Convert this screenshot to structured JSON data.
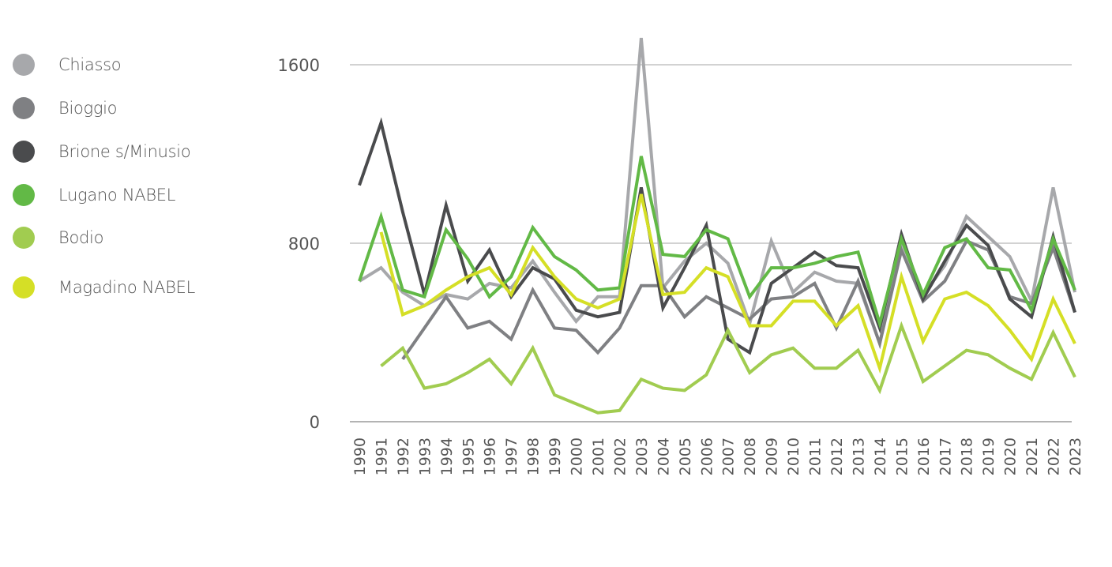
{
  "legend": [
    {
      "name": "Chiasso",
      "color": "#a7a8ab"
    },
    {
      "name": "Bioggio",
      "color": "#7f8083"
    },
    {
      "name": "Brione s/Minusio",
      "color": "#4a4b4d"
    },
    {
      "name": "Lugano NABEL",
      "color": "#62b946"
    },
    {
      "name": "Bodio",
      "color": "#a1cc50"
    },
    {
      "name": "Magadino NABEL",
      "color": "#d5df26"
    }
  ],
  "chart_data": {
    "type": "line",
    "title": "",
    "xlabel": "",
    "ylabel": "",
    "ylim": [
      0,
      1600
    ],
    "yticks": [
      0,
      800,
      1600
    ],
    "grid": true,
    "legend_position": "left",
    "categories": [
      "1990",
      "1991",
      "1992",
      "1993",
      "1994",
      "1995",
      "1996",
      "1997",
      "1998",
      "1999",
      "2000",
      "2001",
      "2002",
      "2003",
      "2004",
      "2005",
      "2006",
      "2007",
      "2008",
      "2009",
      "2010",
      "2011",
      "2012",
      "2013",
      "2014",
      "2015",
      "2016",
      "2017",
      "2018",
      "2019",
      "2020",
      "2021",
      "2022",
      "2023"
    ],
    "series": [
      {
        "name": "Chiasso",
        "color": "#a7a8ab",
        "values": [
          630,
          690,
          580,
          520,
          570,
          550,
          620,
          600,
          720,
          580,
          450,
          560,
          560,
          1720,
          600,
          720,
          800,
          710,
          440,
          810,
          580,
          670,
          630,
          620,
          350,
          810,
          570,
          700,
          920,
          830,
          740,
          540,
          1050,
          580
        ]
      },
      {
        "name": "Bioggio",
        "color": "#7f8083",
        "values": [
          null,
          null,
          280,
          420,
          560,
          420,
          450,
          370,
          590,
          420,
          410,
          310,
          420,
          610,
          610,
          470,
          560,
          510,
          460,
          550,
          560,
          620,
          420,
          630,
          350,
          770,
          540,
          630,
          810,
          770,
          560,
          530,
          780,
          490
        ]
      },
      {
        "name": "Brione s/Minusio",
        "color": "#4a4b4d",
        "values": [
          1060,
          1340,
          940,
          570,
          970,
          630,
          770,
          560,
          690,
          640,
          500,
          470,
          490,
          1050,
          510,
          690,
          880,
          370,
          310,
          620,
          690,
          760,
          700,
          690,
          420,
          840,
          550,
          720,
          880,
          790,
          550,
          470,
          830,
          490
        ]
      },
      {
        "name": "Lugano NABEL",
        "color": "#62b946",
        "values": [
          630,
          920,
          590,
          560,
          860,
          730,
          560,
          650,
          870,
          740,
          680,
          590,
          600,
          1190,
          750,
          740,
          860,
          820,
          560,
          690,
          690,
          710,
          740,
          760,
          440,
          820,
          570,
          780,
          820,
          690,
          680,
          500,
          820,
          590
        ]
      },
      {
        "name": "Bodio",
        "color": "#a1cc50",
        "values": [
          null,
          250,
          330,
          150,
          170,
          220,
          280,
          170,
          330,
          120,
          80,
          40,
          50,
          190,
          150,
          140,
          210,
          410,
          220,
          300,
          330,
          240,
          240,
          320,
          140,
          430,
          180,
          250,
          320,
          300,
          240,
          190,
          400,
          200
        ]
      },
      {
        "name": "Magadino NABEL",
        "color": "#d5df26",
        "values": [
          null,
          850,
          480,
          520,
          590,
          650,
          690,
          570,
          780,
          650,
          550,
          510,
          550,
          1020,
          570,
          580,
          690,
          650,
          430,
          430,
          540,
          540,
          430,
          520,
          240,
          650,
          360,
          550,
          580,
          520,
          410,
          280,
          550,
          350
        ]
      }
    ]
  }
}
